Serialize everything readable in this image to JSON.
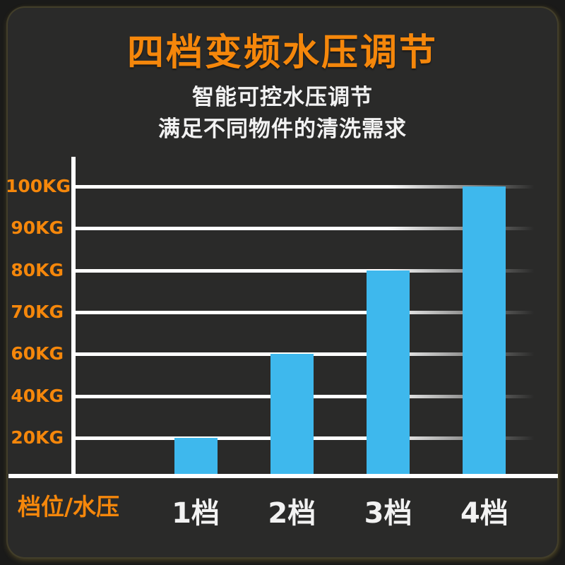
{
  "theme": {
    "outer_bg": "#1a1a19",
    "panel_bg": "#2a2a29",
    "accent_orange": "#f5870b",
    "bar_blue": "#3eb8ed",
    "text_white": "#f2f2f2",
    "grid_white": "#ffffff",
    "edge_glow": "#4a4426"
  },
  "header": {
    "title": "四档变频水压调节",
    "subtitle_line1": "智能可控水压调节",
    "subtitle_line2": "满足不同物件的清洗需求"
  },
  "chart_data": {
    "type": "bar",
    "title": "四档变频水压调节",
    "x_axis_title": "档位/水压",
    "categories": [
      "1档",
      "2档",
      "3档",
      "4档"
    ],
    "values": [
      20,
      60,
      80,
      100
    ],
    "unit": "KG",
    "y_tick_labels_top_to_bottom": [
      "100KG",
      "90KG",
      "80KG",
      "70KG",
      "60KG",
      "40KG",
      "20KG"
    ],
    "grid": true,
    "legend": "none",
    "bar_color": "#3eb8ed",
    "axis_color": "#ffffff",
    "tick_label_color": "#f5870b",
    "note": "bars top-align with the gridlines matching their KG value; y ticks are evenly spaced despite non-linear values"
  }
}
